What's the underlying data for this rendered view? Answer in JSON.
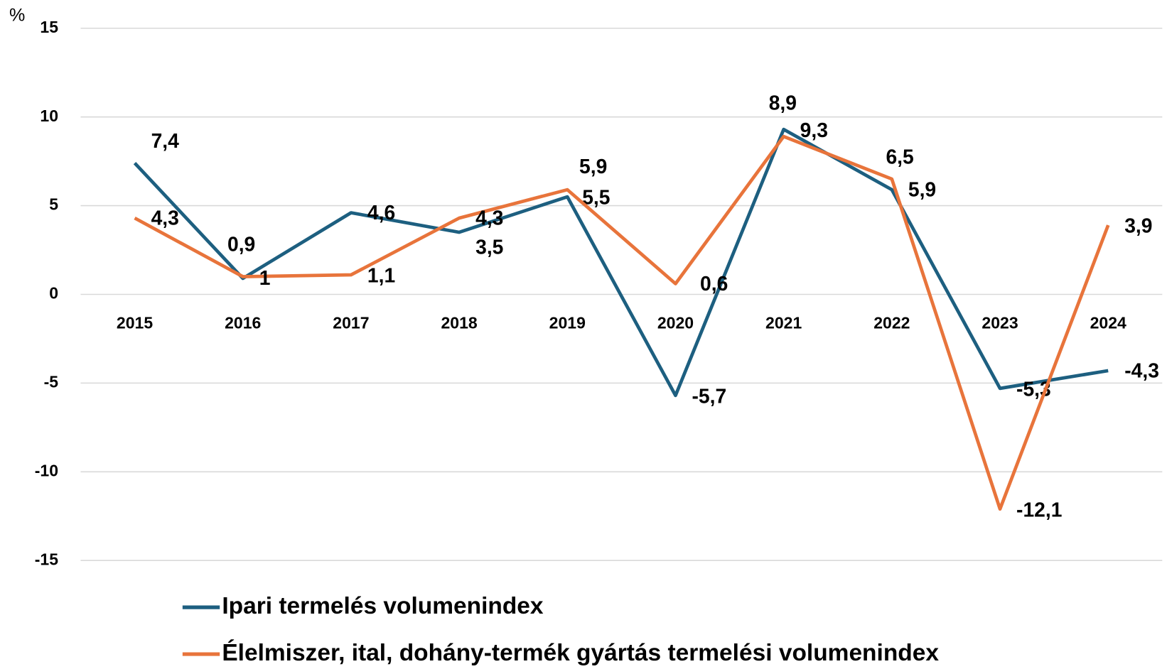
{
  "chart_data": {
    "type": "line",
    "y_unit": "%",
    "categories": [
      "2015",
      "2016",
      "2017",
      "2018",
      "2019",
      "2020",
      "2021",
      "2022",
      "2023",
      "2024"
    ],
    "series": [
      {
        "name": "Ipari termelés volumenindex",
        "color": "#1d5f80",
        "values": [
          7.4,
          0.9,
          4.6,
          3.5,
          5.5,
          -5.7,
          9.3,
          5.9,
          -5.3,
          -4.3
        ],
        "value_labels": [
          "7,4",
          "0,9",
          "4,6",
          "3,5",
          "5,5",
          "-5,7",
          "9,3",
          "5,9",
          "-5,3",
          "-4,3"
        ]
      },
      {
        "name": "Élelmiszer, ital, dohány-termék gyártás termelési volumenindex",
        "color": "#e8743b",
        "values": [
          4.3,
          1,
          1.1,
          4.3,
          5.9,
          0.6,
          8.9,
          6.5,
          -12.1,
          3.9
        ],
        "value_labels": [
          "4,3",
          "1",
          "1,1",
          "4,3",
          "5,9",
          "0,6",
          "8,9",
          "6,5",
          "-12,1",
          "3,9"
        ]
      }
    ],
    "ylim": [
      -15,
      15
    ],
    "yticks": [
      -15,
      -10,
      -5,
      0,
      5,
      10,
      15
    ],
    "grid": true,
    "legend": "bottom"
  }
}
